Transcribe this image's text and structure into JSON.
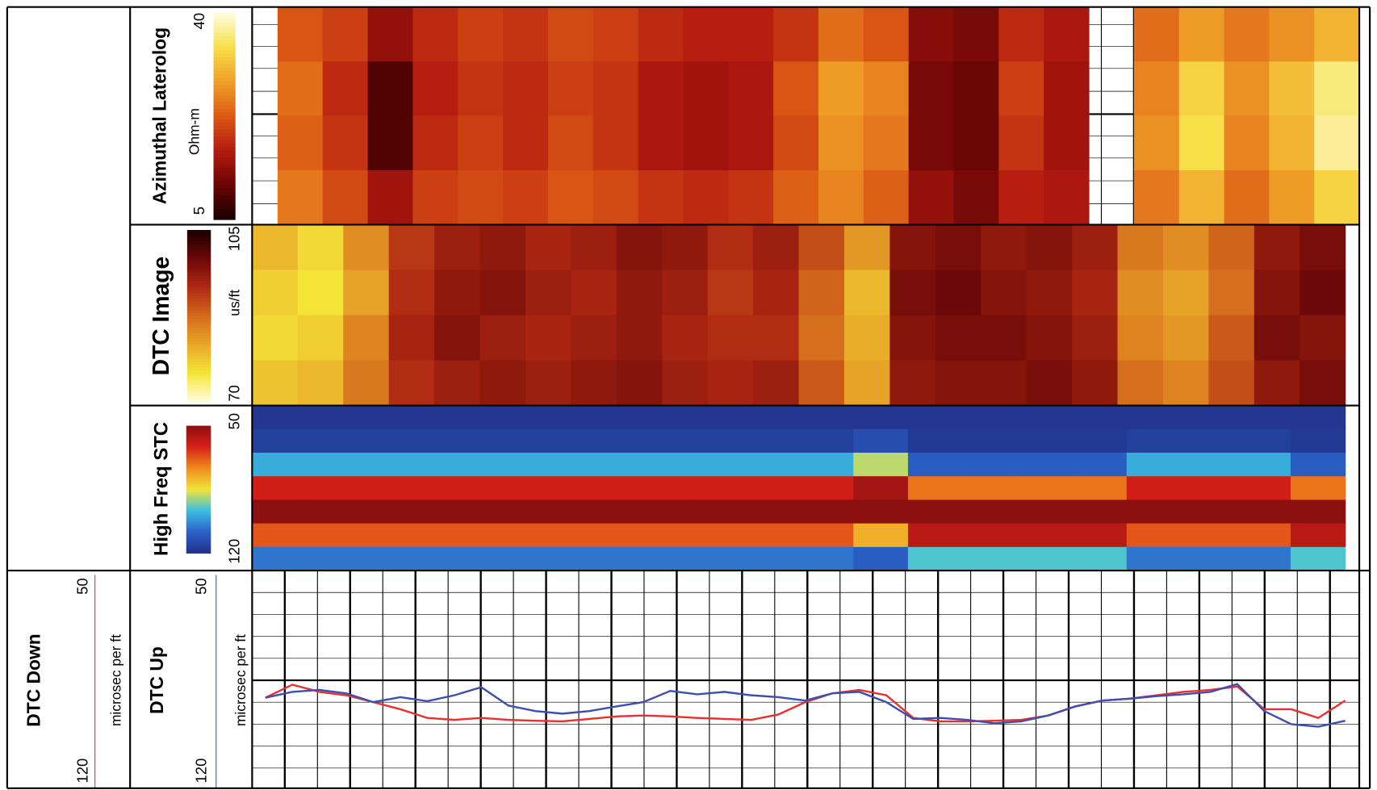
{
  "chart_data": [
    {
      "type": "heatmap",
      "title": "Azimuthal Laterolog",
      "unit": "Ohm-m",
      "clim": [
        5,
        40
      ],
      "cticks": [
        5,
        40
      ],
      "colormap": [
        "#1a0000",
        "#6a0505",
        "#b51a10",
        "#dc5a14",
        "#f0a028",
        "#f8e04a",
        "#fffde6"
      ],
      "values": [
        [
          22,
          20,
          14,
          18,
          20,
          19,
          21,
          20,
          18,
          17,
          17,
          19,
          24,
          22,
          13,
          12,
          18,
          16,
          null,
          24,
          28,
          25,
          27,
          30
        ],
        [
          24,
          18,
          9,
          17,
          19,
          18,
          20,
          19,
          16,
          15,
          16,
          22,
          28,
          26,
          12,
          11,
          20,
          15,
          null,
          26,
          33,
          27,
          31,
          36
        ],
        [
          23,
          19,
          9,
          18,
          20,
          18,
          21,
          19,
          16,
          15,
          16,
          21,
          27,
          25,
          12,
          11,
          19,
          15,
          null,
          27,
          34,
          26,
          30,
          37
        ],
        [
          25,
          21,
          15,
          20,
          21,
          20,
          22,
          21,
          19,
          18,
          19,
          23,
          26,
          23,
          14,
          12,
          17,
          16,
          null,
          25,
          30,
          24,
          28,
          33
        ]
      ]
    },
    {
      "type": "heatmap",
      "title": "DTC Image",
      "unit": "us/ft",
      "clim": [
        70,
        105
      ],
      "cticks": [
        70,
        105
      ],
      "colormap": [
        "#fffde0",
        "#f4e638",
        "#e8a628",
        "#d46a1c",
        "#b02812",
        "#6a0808",
        "#1a0000"
      ],
      "values": [
        [
          80,
          77,
          84,
          92,
          95,
          96,
          94,
          95,
          97,
          96,
          93,
          95,
          90,
          83,
          97,
          98,
          96,
          97,
          95,
          86,
          84,
          88,
          96,
          98
        ],
        [
          78,
          76,
          82,
          93,
          96,
          97,
          95,
          94,
          96,
          95,
          92,
          94,
          88,
          80,
          98,
          99,
          97,
          96,
          94,
          84,
          82,
          87,
          97,
          99
        ],
        [
          77,
          78,
          85,
          94,
          97,
          95,
          94,
          95,
          96,
          94,
          93,
          93,
          87,
          81,
          97,
          98,
          98,
          97,
          95,
          85,
          83,
          89,
          98,
          97
        ],
        [
          79,
          80,
          86,
          93,
          95,
          96,
          95,
          96,
          97,
          95,
          94,
          95,
          89,
          82,
          96,
          97,
          97,
          98,
          96,
          87,
          85,
          90,
          96,
          98
        ]
      ]
    },
    {
      "type": "heatmap",
      "title": "High Freq STC",
      "ylim": [
        50,
        120
      ],
      "yticks": [
        50,
        120
      ],
      "clim": [
        0,
        1
      ],
      "colormap": [
        "#22318a",
        "#2a62c8",
        "#3cc0e0",
        "#f2e43a",
        "#f08a1c",
        "#d82018",
        "#8c1010"
      ],
      "values": [
        [
          0.02,
          0.02,
          0.02,
          0.02,
          0.02,
          0.02,
          0.02,
          0.02,
          0.02,
          0.02,
          0.02,
          0.02,
          0.02,
          0.02,
          0.02,
          0.02,
          0.02,
          0.02,
          0.02,
          0.02
        ],
        [
          0.05,
          0.05,
          0.05,
          0.05,
          0.05,
          0.05,
          0.05,
          0.05,
          0.05,
          0.05,
          0.05,
          0.1,
          0.03,
          0.03,
          0.03,
          0.03,
          0.05,
          0.05,
          0.05,
          0.03
        ],
        [
          0.3,
          0.3,
          0.3,
          0.3,
          0.3,
          0.3,
          0.3,
          0.3,
          0.3,
          0.3,
          0.3,
          0.45,
          0.15,
          0.15,
          0.15,
          0.15,
          0.3,
          0.3,
          0.3,
          0.15
        ],
        [
          0.85,
          0.85,
          0.85,
          0.85,
          0.85,
          0.85,
          0.85,
          0.85,
          0.85,
          0.85,
          0.85,
          0.95,
          0.7,
          0.7,
          0.7,
          0.7,
          0.85,
          0.85,
          0.85,
          0.7
        ],
        [
          1,
          1,
          1,
          1,
          1,
          1,
          1,
          1,
          1,
          1,
          1,
          1,
          1,
          1,
          1,
          1,
          1,
          1,
          1,
          1
        ],
        [
          0.75,
          0.75,
          0.75,
          0.75,
          0.75,
          0.75,
          0.75,
          0.75,
          0.75,
          0.75,
          0.75,
          0.6,
          0.9,
          0.9,
          0.9,
          0.9,
          0.75,
          0.75,
          0.75,
          0.9
        ],
        [
          0.2,
          0.2,
          0.2,
          0.2,
          0.2,
          0.2,
          0.2,
          0.2,
          0.2,
          0.2,
          0.2,
          0.15,
          0.35,
          0.35,
          0.35,
          0.35,
          0.2,
          0.2,
          0.2,
          0.35
        ]
      ]
    },
    {
      "type": "line",
      "series": [
        {
          "name": "DTC Down",
          "unit": "microsec per ft",
          "color": "#e8302e",
          "ylim": [
            50,
            120
          ],
          "yticks": [
            50,
            120
          ],
          "values": [
            90.9,
            86.7,
            89.0,
            90.1,
            92.3,
            94.6,
            97.4,
            98.0,
            97.4,
            98.0,
            98.3,
            98.5,
            97.7,
            96.9,
            96.6,
            96.9,
            97.4,
            97.7,
            98.0,
            96.3,
            92.3,
            89.5,
            88.4,
            90.1,
            97.4,
            98.5,
            98.5,
            98.3,
            98.0,
            96.6,
            93.7,
            91.8,
            91.2,
            90.1,
            89.0,
            88.4,
            87.3,
            94.6,
            94.6,
            97.4,
            91.8
          ]
        },
        {
          "name": "DTC Up",
          "unit": "microsec per ft",
          "color": "#3c4fb0",
          "ylim": [
            50,
            120
          ],
          "yticks": [
            50,
            120
          ],
          "values": [
            90.9,
            89.0,
            88.4,
            89.5,
            92.3,
            90.7,
            92.0,
            90.1,
            87.5,
            93.4,
            95.2,
            96.0,
            95.2,
            93.7,
            92.3,
            88.7,
            89.8,
            89.0,
            90.1,
            90.7,
            91.8,
            89.5,
            89.0,
            92.3,
            97.7,
            97.4,
            98.0,
            99.1,
            98.5,
            96.6,
            93.7,
            91.8,
            91.2,
            90.4,
            89.8,
            89.0,
            86.5,
            95.2,
            99.4,
            100.2,
            98.3
          ]
        }
      ]
    }
  ]
}
